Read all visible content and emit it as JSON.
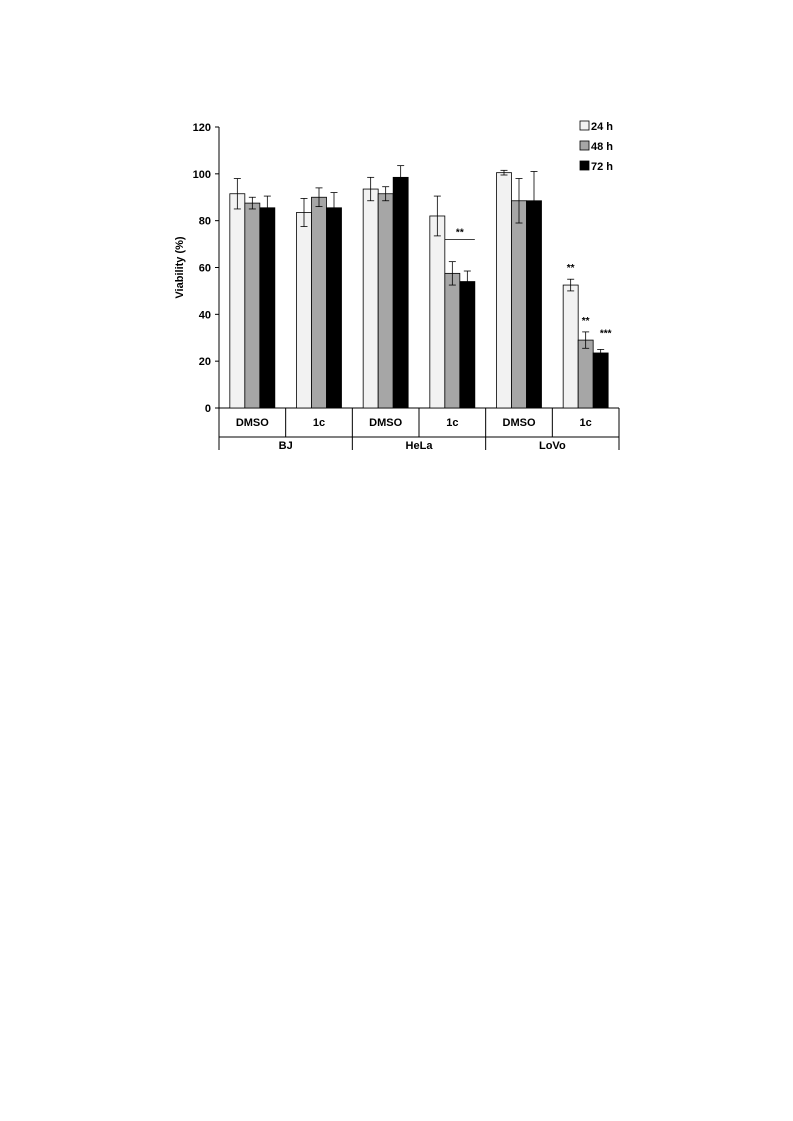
{
  "chart_data": {
    "type": "bar",
    "title": "",
    "xlabel": "",
    "ylabel": "Viability (%)",
    "ylim": [
      0,
      120
    ],
    "yticks": [
      0,
      20,
      40,
      60,
      80,
      100,
      120
    ],
    "grid": false,
    "legend_position": "top-right",
    "colors": {
      "24 h": "#f2f2f2",
      "48 h": "#a6a6a6",
      "72 h": "#000000"
    },
    "categories": [
      {
        "cell_line": "BJ",
        "treatment": "DMSO"
      },
      {
        "cell_line": "BJ",
        "treatment": "1c"
      },
      {
        "cell_line": "HeLa",
        "treatment": "DMSO"
      },
      {
        "cell_line": "HeLa",
        "treatment": "1c"
      },
      {
        "cell_line": "LoVo",
        "treatment": "DMSO"
      },
      {
        "cell_line": "LoVo",
        "treatment": "1c"
      }
    ],
    "groups": [
      {
        "label": "BJ",
        "span": 2
      },
      {
        "label": "HeLa",
        "span": 2
      },
      {
        "label": "LoVo",
        "span": 2
      }
    ],
    "series": [
      {
        "name": "24 h",
        "values": [
          91.5,
          83.5,
          93.5,
          82.0,
          100.5,
          52.5
        ],
        "errors": [
          6.5,
          6.0,
          5.0,
          8.5,
          1.0,
          2.5
        ]
      },
      {
        "name": "48 h",
        "values": [
          87.5,
          90.0,
          91.5,
          57.5,
          88.5,
          29.0
        ],
        "errors": [
          2.5,
          4.0,
          3.0,
          5.0,
          9.5,
          3.5
        ]
      },
      {
        "name": "72 h",
        "values": [
          85.5,
          85.5,
          98.5,
          54.0,
          88.5,
          23.5
        ],
        "errors": [
          5.0,
          6.5,
          5.0,
          4.5,
          12.5,
          1.5
        ]
      }
    ],
    "annotations": [
      {
        "text": "**",
        "category": 3,
        "bracket_series": [
          1,
          2
        ],
        "y": 72
      },
      {
        "text": "**",
        "category": 5,
        "series": 0
      },
      {
        "text": "**",
        "category": 5,
        "series": 1
      },
      {
        "text": "***",
        "category": 5,
        "series": 2
      }
    ]
  }
}
